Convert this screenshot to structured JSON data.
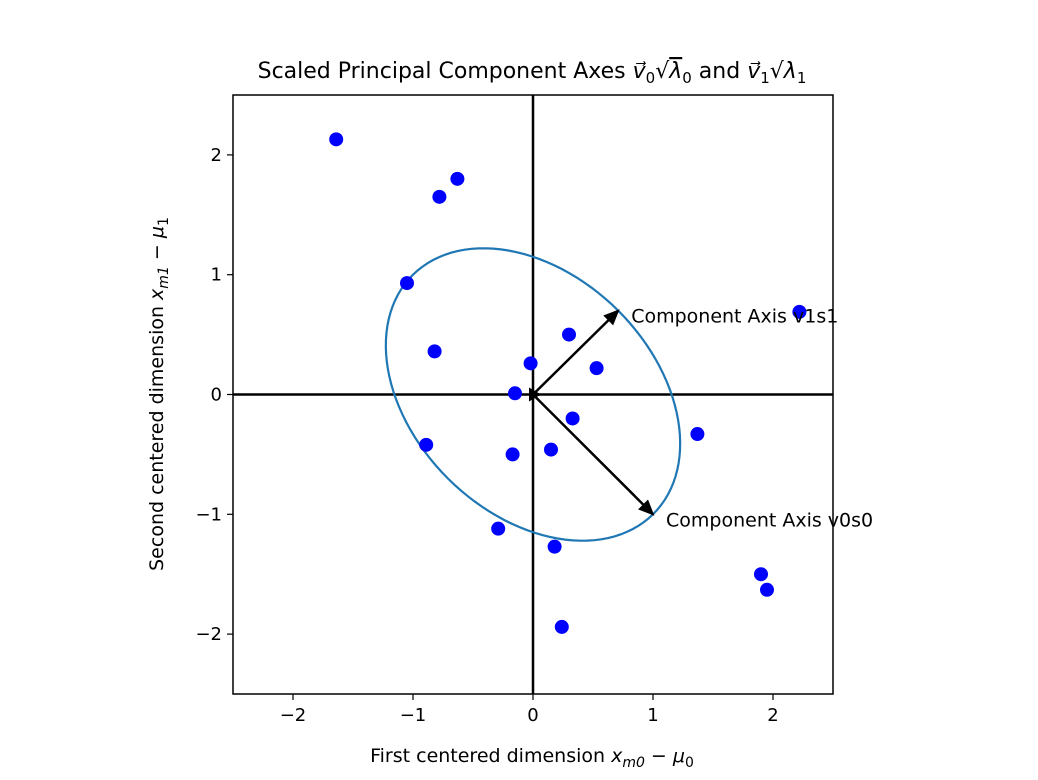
{
  "chart_data": {
    "type": "scatter",
    "title": "Scaled Principal Component Axes v⃗₀√λ₀ and v⃗₁√λ₁",
    "title_parts": {
      "prefix": "Scaled Principal Component Axes ",
      "v": "v⃗",
      "sub0": "0",
      "sub1": "1",
      "sqrt": "√",
      "lambda": "λ",
      "and": " and "
    },
    "xlabel": "First centered dimension xₘ₀ − μ₀",
    "ylabel": "Second centered dimension xₘ₁ − μ₁",
    "xlabel_parts": {
      "text": "First centered dimension ",
      "var": "x",
      "sub": "m0",
      "minus": " − ",
      "mu": "μ",
      "musub": "0"
    },
    "ylabel_parts": {
      "text": "Second centered dimension ",
      "var": "x",
      "sub": "m1",
      "minus": " − ",
      "mu": "μ",
      "musub": "1"
    },
    "xlim": [
      -2.5,
      2.5
    ],
    "ylim": [
      -2.5,
      2.5
    ],
    "xticks": [
      -2,
      -1,
      0,
      1,
      2
    ],
    "yticks": [
      -2,
      -1,
      0,
      1,
      2
    ],
    "tick_labels_x": [
      "−2",
      "−1",
      "0",
      "1",
      "2"
    ],
    "tick_labels_y": [
      "−2",
      "−1",
      "0",
      "1",
      "2"
    ],
    "grid": false,
    "points_color": "#0000ff",
    "ellipse_color": "#1f77b4",
    "axis_line_color": "#000000",
    "points": [
      {
        "x": -1.64,
        "y": 2.13
      },
      {
        "x": -0.63,
        "y": 1.8
      },
      {
        "x": -0.78,
        "y": 1.65
      },
      {
        "x": -1.05,
        "y": 0.93
      },
      {
        "x": -0.82,
        "y": 0.36
      },
      {
        "x": 0.3,
        "y": 0.5
      },
      {
        "x": -0.02,
        "y": 0.26
      },
      {
        "x": 0.53,
        "y": 0.22
      },
      {
        "x": -0.15,
        "y": 0.01
      },
      {
        "x": 0.33,
        "y": -0.2
      },
      {
        "x": -0.89,
        "y": -0.42
      },
      {
        "x": -0.17,
        "y": -0.5
      },
      {
        "x": 0.15,
        "y": -0.46
      },
      {
        "x": 1.37,
        "y": -0.33
      },
      {
        "x": 2.22,
        "y": 0.69
      },
      {
        "x": -0.29,
        "y": -1.12
      },
      {
        "x": 0.18,
        "y": -1.27
      },
      {
        "x": 1.9,
        "y": -1.5
      },
      {
        "x": 1.95,
        "y": -1.63
      },
      {
        "x": 0.24,
        "y": -1.94
      }
    ],
    "ellipse": {
      "center": [
        0,
        0
      ],
      "v0_end": [
        1.0,
        -1.0
      ],
      "v1_end": [
        0.71,
        0.7
      ]
    },
    "annotations": [
      {
        "text": "Component Axis v1s1",
        "x": 0.71,
        "y": 0.7
      },
      {
        "text": "Component Axis v0s0",
        "x": 1.0,
        "y": -1.0
      }
    ]
  }
}
